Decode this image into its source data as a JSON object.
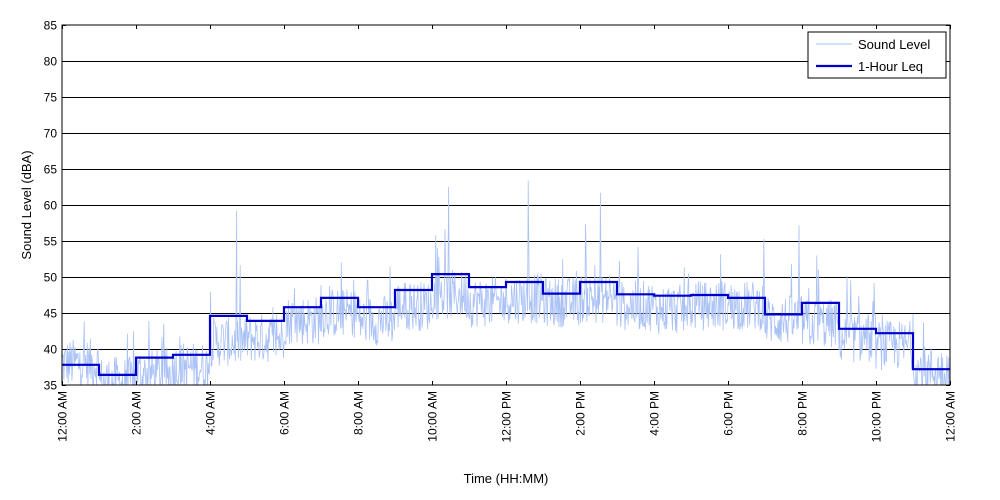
{
  "chart_data": {
    "type": "line",
    "xlabel": "Time (HH:MM)",
    "ylabel": "Sound Level (dBA)",
    "xlim": [
      0,
      24
    ],
    "ylim": [
      35,
      85
    ],
    "grid": "horizontal",
    "legend_position": "top-right",
    "yticks": [
      35,
      40,
      45,
      50,
      55,
      60,
      65,
      70,
      75,
      80,
      85
    ],
    "xticks": [
      {
        "hour": 0,
        "label": "12:00 AM"
      },
      {
        "hour": 2,
        "label": "2:00 AM"
      },
      {
        "hour": 4,
        "label": "4:00 AM"
      },
      {
        "hour": 6,
        "label": "6:00 AM"
      },
      {
        "hour": 8,
        "label": "8:00 AM"
      },
      {
        "hour": 10,
        "label": "10:00 AM"
      },
      {
        "hour": 12,
        "label": "12:00 PM"
      },
      {
        "hour": 14,
        "label": "2:00 PM"
      },
      {
        "hour": 16,
        "label": "4:00 PM"
      },
      {
        "hour": 18,
        "label": "6:00 PM"
      },
      {
        "hour": 20,
        "label": "8:00 PM"
      },
      {
        "hour": 22,
        "label": "10:00 PM"
      },
      {
        "hour": 24,
        "label": "12:00 AM"
      }
    ],
    "series": [
      {
        "name": "Sound Level",
        "color": "#a9c1f5",
        "style": "thin-noisy",
        "hourly_typical_level": [
          38,
          35.5,
          36.5,
          37.5,
          41,
          41.5,
          44,
          45,
          44,
          46,
          47.5,
          46.5,
          47,
          46.5,
          47,
          46,
          45.5,
          46,
          46,
          44,
          43.5,
          41.5,
          40.5,
          37
        ],
        "notable_peaks": [
          {
            "hour": 4.72,
            "value": 59.2
          },
          {
            "hour": 10.45,
            "value": 62.5
          },
          {
            "hour": 12.6,
            "value": 63.4
          },
          {
            "hour": 14.55,
            "value": 61.7
          },
          {
            "hour": 19.92,
            "value": 57.2
          },
          {
            "hour": 20.4,
            "value": 53
          }
        ]
      },
      {
        "name": "1-Hour Leq",
        "color": "#0000cc",
        "style": "step",
        "hour_start": [
          0,
          1,
          2,
          3,
          4,
          5,
          6,
          7,
          8,
          9,
          10,
          11,
          12,
          13,
          14,
          15,
          16,
          17,
          18,
          19,
          20,
          21,
          22,
          23
        ],
        "values": [
          37.8,
          36.4,
          38.8,
          39.2,
          44.6,
          43.9,
          45.8,
          47.1,
          45.8,
          48.2,
          50.4,
          48.6,
          49.3,
          47.7,
          49.3,
          47.6,
          47.4,
          47.5,
          47.1,
          44.8,
          46.4,
          42.8,
          42.2,
          37.2
        ]
      }
    ]
  }
}
